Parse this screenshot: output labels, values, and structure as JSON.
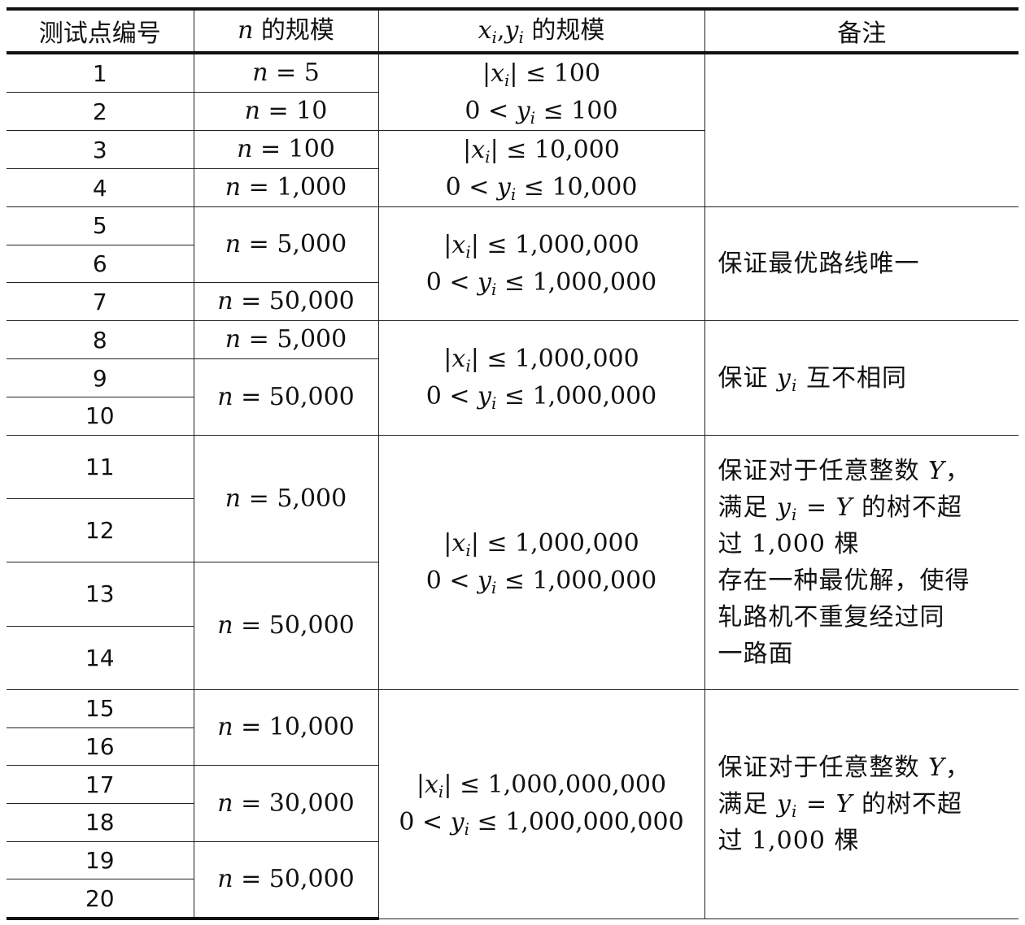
{
  "headers": [
    "测试点编号",
    "n 的规模",
    "x_i,y_i 的规模",
    "备注"
  ],
  "test_ids": [
    "1",
    "2",
    "3",
    "4",
    "5",
    "6",
    "7",
    "8",
    "9",
    "10",
    "11",
    "12",
    "13",
    "14",
    "15",
    "16",
    "17",
    "18",
    "19",
    "20"
  ],
  "n_scale": {
    "r1": "n = 5",
    "r2": "n = 10",
    "r3": "n = 100",
    "r4": "n = 1,000",
    "r5_6": "n = 5,000",
    "r7": "n = 50,000",
    "r8": "n = 5,000",
    "r9_10": "n = 50,000",
    "r11_12": "n = 5,000",
    "r13_14": "n = 50,000",
    "r15_16": "n = 10,000",
    "r17_18": "n = 30,000",
    "r19_20": "n = 50,000"
  },
  "xy_scale": {
    "r1_2": [
      "|x_i| ≤ 100",
      "0 < y_i ≤ 100"
    ],
    "r3_4": [
      "|x_i| ≤ 10,000",
      "0 < y_i ≤ 10,000"
    ],
    "r5_7": [
      "|x_i| ≤ 1,000,000",
      "0 < y_i ≤ 1,000,000"
    ],
    "r8_10": [
      "|x_i| ≤ 1,000,000",
      "0 < y_i ≤ 1,000,000"
    ],
    "r11_14": [
      "|x_i| ≤ 1,000,000",
      "0 < y_i ≤ 1,000,000"
    ],
    "r15_20": [
      "|x_i| ≤ 1,000,000,000",
      "0 < y_i ≤ 1,000,000,000"
    ]
  },
  "notes": {
    "r1_4": "",
    "r5_7": [
      "保证最优路线唯一"
    ],
    "r8_10": [
      "保证 y_i 互不相同"
    ],
    "r11_14": [
      "保证对于任意整数 Y，",
      "满足 y_i = Y 的树不超",
      "过 1,000 棵",
      "存在一种最优解，使得",
      "轧路机不重复经过同",
      "一路面"
    ],
    "r15_20": [
      "保证对于任意整数 Y，",
      "满足 y_i = Y 的树不超",
      "过 1,000 棵"
    ]
  }
}
